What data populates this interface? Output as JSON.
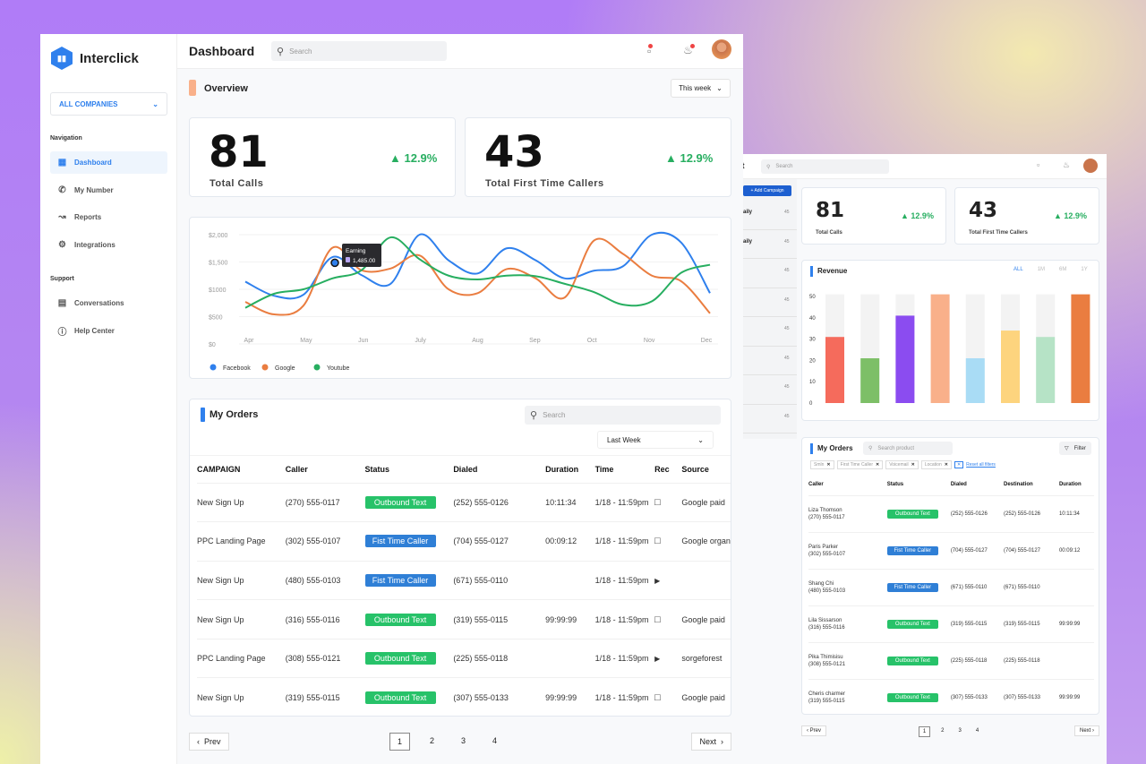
{
  "brand": {
    "name": "Interclick"
  },
  "sidebar": {
    "company": "ALL COMPANIES",
    "nav_title": "Navigation",
    "nav": [
      {
        "label": "Dashboard",
        "icon": "grid-icon"
      },
      {
        "label": "My Number",
        "icon": "phone-icon"
      },
      {
        "label": "Reports",
        "icon": "chart-icon"
      },
      {
        "label": "Integrations",
        "icon": "gear-icon"
      }
    ],
    "support_title": "Support",
    "support": [
      {
        "label": "Conversations",
        "icon": "chat-icon"
      },
      {
        "label": "Help Center",
        "icon": "help-icon"
      }
    ]
  },
  "header": {
    "title": "Dashboard",
    "search_placeholder": "Search"
  },
  "overview": {
    "title": "Overview",
    "period": "This week",
    "accent": "#f9b08a"
  },
  "stats": [
    {
      "value": "81",
      "label": "Total Calls",
      "change": "12.9%"
    },
    {
      "value": "43",
      "label": "Total First Time Callers",
      "change": "12.9%"
    }
  ],
  "chart_data": [
    {
      "type": "line",
      "x_ticks": [
        "Apr",
        "May",
        "Jun",
        "July",
        "Aug",
        "Sep",
        "Oct",
        "Nov",
        "Dec"
      ],
      "y_ticks": [
        "$0",
        "$500",
        "$1000",
        "$1,500",
        "$2,000"
      ],
      "ylim": [
        0,
        2000
      ],
      "legend": "bottom-left",
      "series": [
        {
          "name": "Facebook",
          "color": "#2f80ed",
          "values": [
            1140,
            880,
            900,
            1590,
            1260,
            1100,
            2000,
            1530,
            1290,
            1750,
            1530,
            1200,
            1340,
            1420,
            2000,
            1860,
            930
          ]
        },
        {
          "name": "Google",
          "color": "#ea7d40",
          "values": [
            770,
            540,
            700,
            1760,
            1350,
            1380,
            1620,
            1000,
            930,
            1370,
            1200,
            850,
            1890,
            1650,
            1250,
            1150,
            560
          ]
        },
        {
          "name": "Youtube",
          "color": "#27ae60",
          "values": [
            660,
            920,
            1000,
            1200,
            1350,
            1950,
            1550,
            1250,
            1180,
            1250,
            1240,
            1100,
            950,
            720,
            780,
            1300,
            1450
          ]
        }
      ],
      "tooltip": {
        "title": "Earning",
        "value": "1,485.00"
      }
    },
    {
      "type": "bar",
      "title": "Revenue",
      "ylim": [
        0,
        50
      ],
      "y_ticks": [
        "0",
        "10",
        "20",
        "30",
        "40",
        "50"
      ],
      "values": [
        31,
        21,
        41,
        51,
        21,
        34,
        31,
        51
      ],
      "max": 51,
      "colors": [
        "#f56b5c",
        "#7dbf67",
        "#8b4cf0",
        "#f9b08a",
        "#a9dcf5",
        "#fdd47e",
        "#b6e3c6",
        "#ea7d40"
      ],
      "ranges": [
        "ALL",
        "1M",
        "6M",
        "1Y"
      ],
      "active_range": "ALL"
    }
  ],
  "orders": {
    "title": "My Orders",
    "search_placeholder": "Search",
    "period": "Last Week",
    "columns": [
      "CAMPAIGN",
      "Caller",
      "Status",
      "Dialed",
      "Duration",
      "Time",
      "Rec",
      "Source"
    ],
    "rows": [
      {
        "campaign": "New Sign Up",
        "caller": "(270) 555-0117",
        "status": "Outbound Text",
        "dialed": "(252) 555-0126",
        "duration": "10:11:34",
        "time": "1/18 - 11:59pm",
        "rec": "message",
        "source": "Google paid"
      },
      {
        "campaign": "PPC Landing Page",
        "caller": "(302) 555-0107",
        "status": "Fist Time Caller",
        "dialed": "(704) 555-0127",
        "duration": "00:09:12",
        "time": "1/18 - 11:59pm",
        "rec": "message",
        "source": "Google organi"
      },
      {
        "campaign": "New Sign Up",
        "caller": "(480) 555-0103",
        "status": "Fist Time Caller",
        "dialed": "(671) 555-0110",
        "duration": "",
        "time": "1/18 - 11:59pm",
        "rec": "play",
        "source": ""
      },
      {
        "campaign": "New Sign Up",
        "caller": "(316) 555-0116",
        "status": "Outbound Text",
        "dialed": "(319) 555-0115",
        "duration": "99:99:99",
        "time": "1/18 - 11:59pm",
        "rec": "message",
        "source": "Google paid"
      },
      {
        "campaign": "PPC Landing Page",
        "caller": "(308) 555-0121",
        "status": "Outbound Text",
        "dialed": "(225) 555-0118",
        "duration": "",
        "time": "1/18 - 11:59pm",
        "rec": "play",
        "source": "sorgeforest"
      },
      {
        "campaign": "New Sign Up",
        "caller": "(319) 555-0115",
        "status": "Outbound Text",
        "dialed": "(307) 555-0133",
        "duration": "99:99:99",
        "time": "1/18 - 11:59pm",
        "rec": "message",
        "source": "Google paid"
      }
    ],
    "prev": "Prev",
    "next": "Next",
    "pages": [
      "1",
      "2",
      "3",
      "4"
    ],
    "current_page": "1"
  },
  "right": {
    "title_partial": "lt",
    "search_placeholder": "Search",
    "add_button": "+ Add Campaign",
    "list": [
      {
        "label": "aily",
        "count": "45"
      },
      {
        "label": "aily",
        "count": "45"
      },
      {
        "label": "",
        "count": "45"
      },
      {
        "label": "",
        "count": "45"
      },
      {
        "label": "",
        "count": "45"
      },
      {
        "label": "",
        "count": "45"
      },
      {
        "label": "",
        "count": "45"
      },
      {
        "label": "",
        "count": "45"
      }
    ],
    "orders_title": "My Orders",
    "search_product": "Search product",
    "filter": "Filter",
    "chips": [
      "Smln",
      "First Time Caller",
      "Voicemail",
      "Location"
    ],
    "reset": "Reset all filters",
    "columns": [
      "Caller",
      "Status",
      "Dialed",
      "Destination",
      "Duration"
    ],
    "rows": [
      {
        "name": "Liza Thomson",
        "phone": "(270) 555-0117",
        "status": "Outbound Text",
        "dialed": "(252) 555-0126",
        "dest": "(252) 555-0126",
        "duration": "10:11:34"
      },
      {
        "name": "Paris Parker",
        "phone": "(302) 555-0107",
        "status": "Fist Time Caller",
        "dialed": "(704) 555-0127",
        "dest": "(704) 555-0127",
        "duration": "00:09:12"
      },
      {
        "name": "Shang Chi",
        "phone": "(480) 555-0103",
        "status": "Fist Time Caller",
        "dialed": "(671) 555-0110",
        "dest": "(671) 555-0110",
        "duration": ""
      },
      {
        "name": "Lila Sissarson",
        "phone": "(316) 555-0116",
        "status": "Outbound Text",
        "dialed": "(319) 555-0115",
        "dest": "(319) 555-0115",
        "duration": "99:99:99"
      },
      {
        "name": "Pika Thimisisu",
        "phone": "(308) 555-0121",
        "status": "Outbound Text",
        "dialed": "(225) 555-0118",
        "dest": "(225) 555-0118",
        "duration": ""
      },
      {
        "name": "Cheris charmer",
        "phone": "(319) 555-0115",
        "status": "Outbound Text",
        "dialed": "(307) 555-0133",
        "dest": "(307) 555-0133",
        "duration": "99:99:99"
      }
    ]
  }
}
